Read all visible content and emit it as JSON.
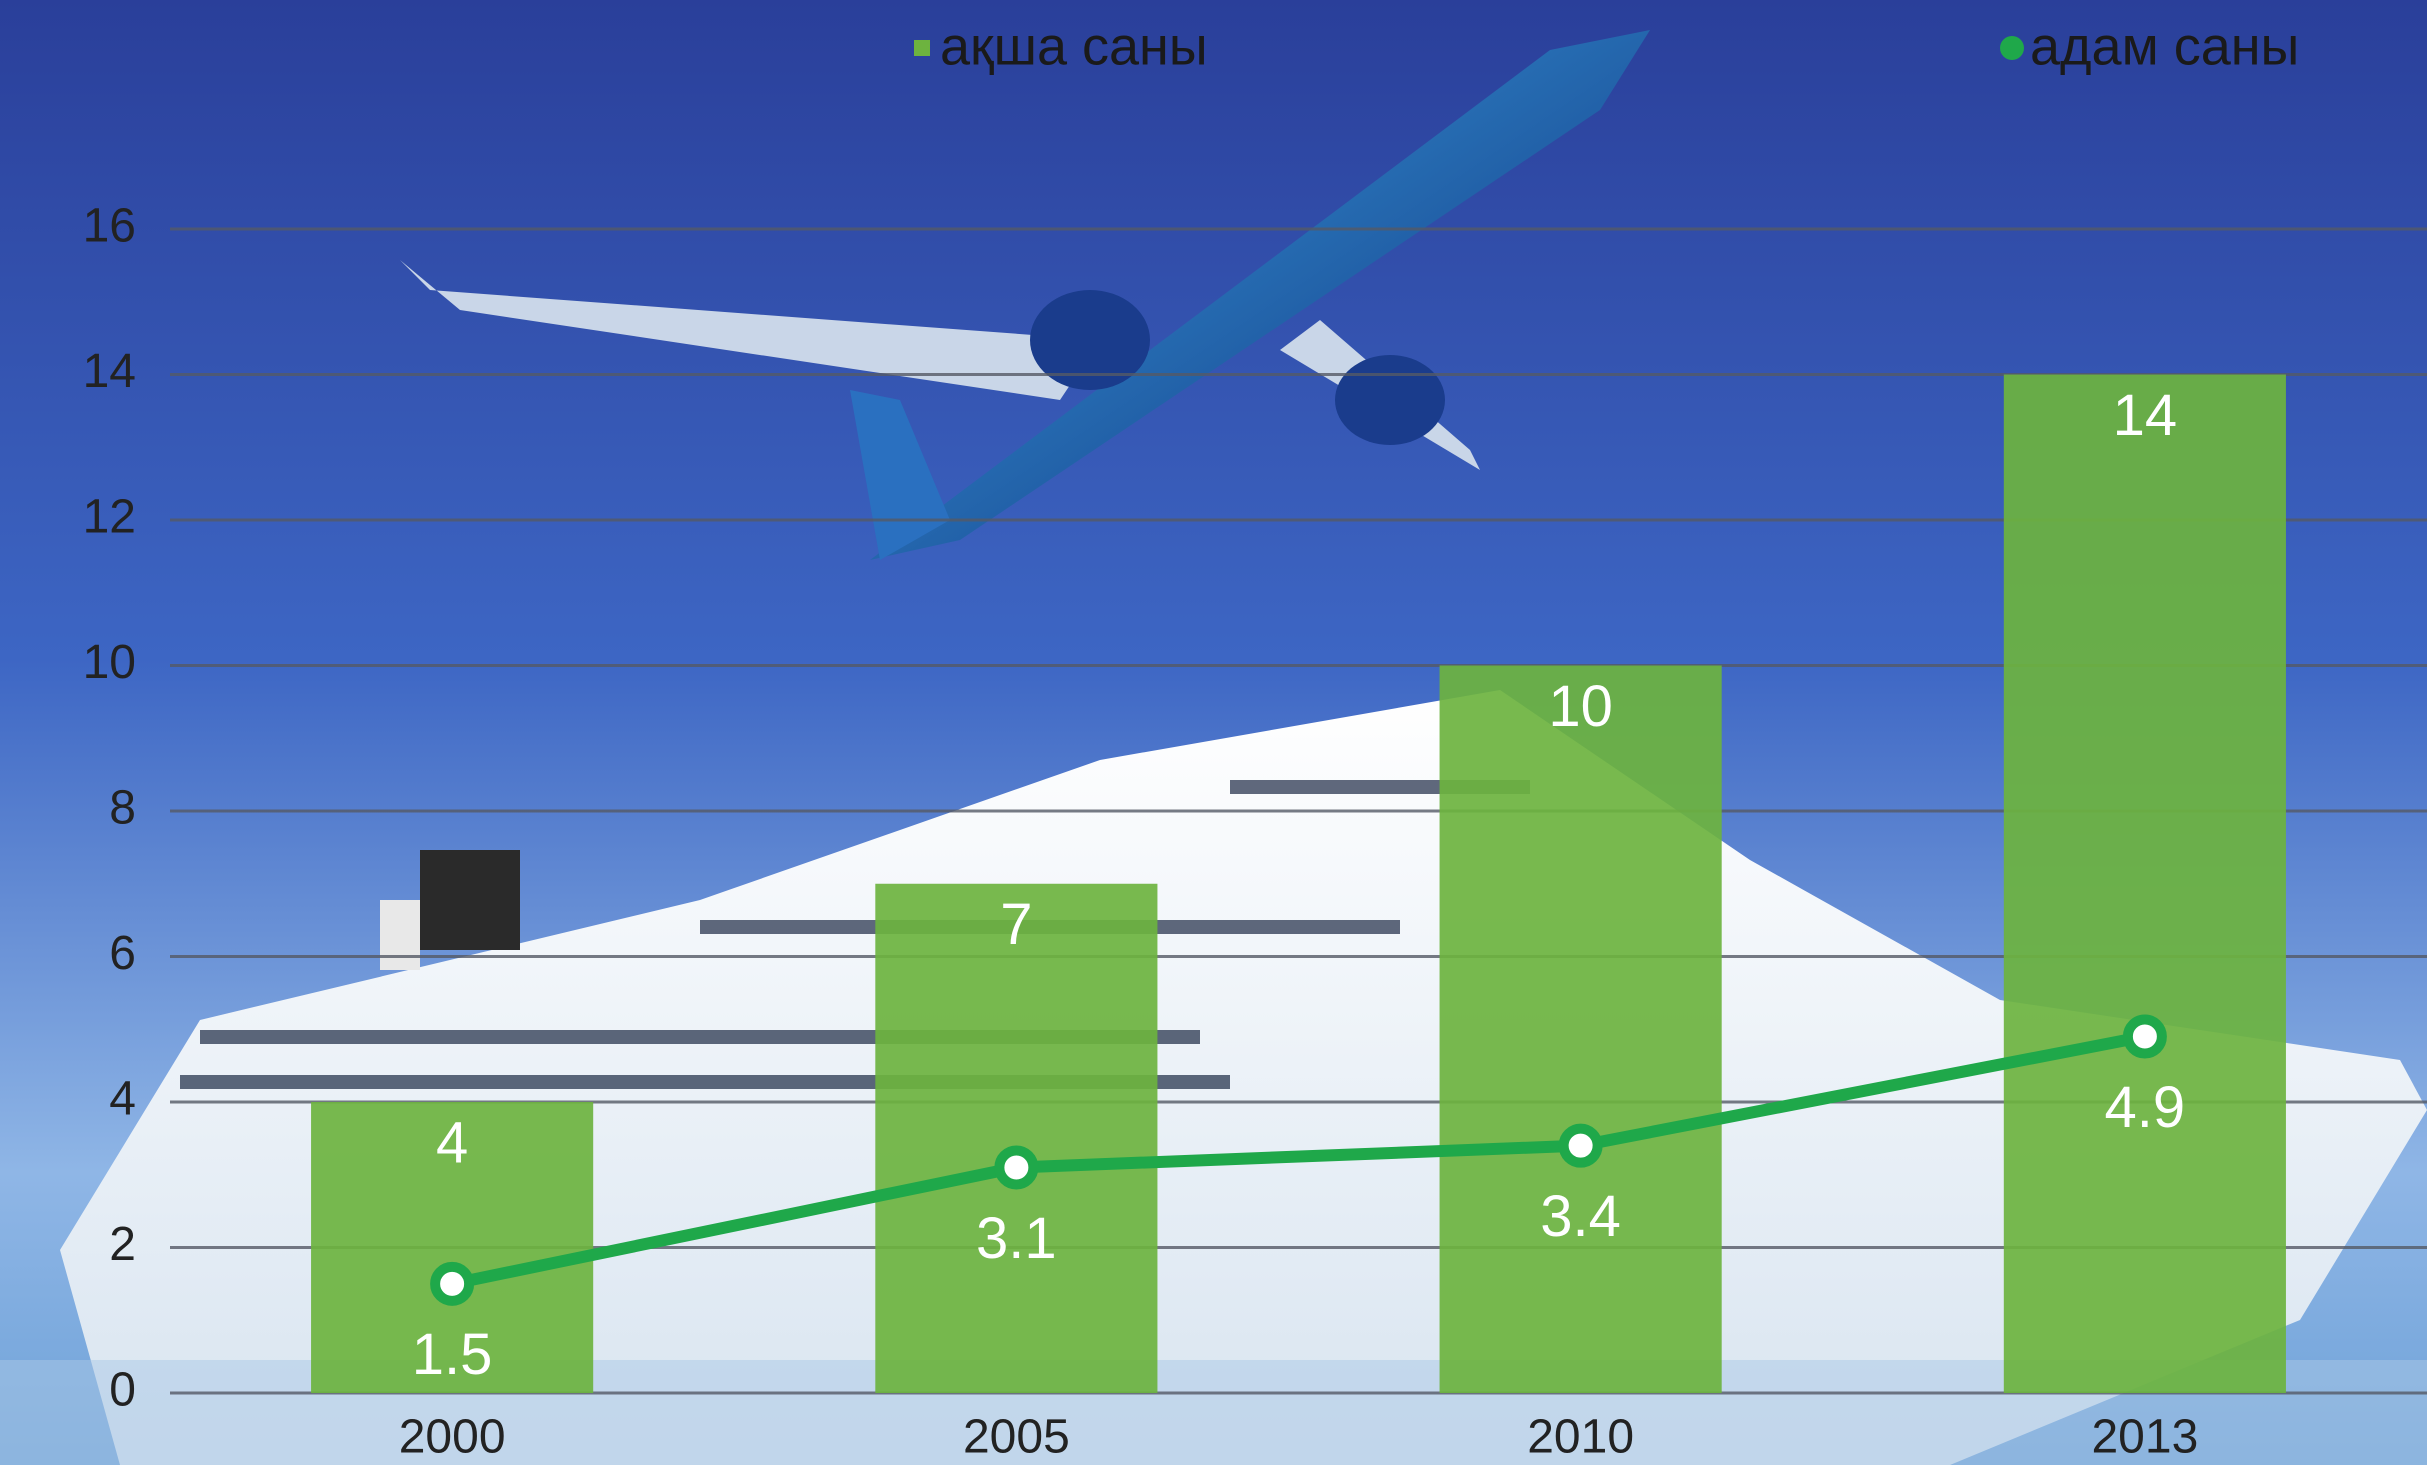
{
  "chart_data": {
    "type": "bar",
    "categories": [
      "2000",
      "2005",
      "2010",
      "2013"
    ],
    "series": [
      {
        "name": "ақша саны",
        "type": "bar",
        "color": "#6db33f",
        "values": [
          4,
          7,
          10,
          14
        ]
      },
      {
        "name": "адам саны",
        "type": "line",
        "color": "#1fa84a",
        "values": [
          1.5,
          3.1,
          3.4,
          4.9
        ]
      }
    ],
    "ylim": [
      0,
      16
    ],
    "yticks": [
      0,
      2,
      4,
      6,
      8,
      10,
      12,
      14,
      16
    ],
    "grid": true,
    "legend": "top"
  }
}
